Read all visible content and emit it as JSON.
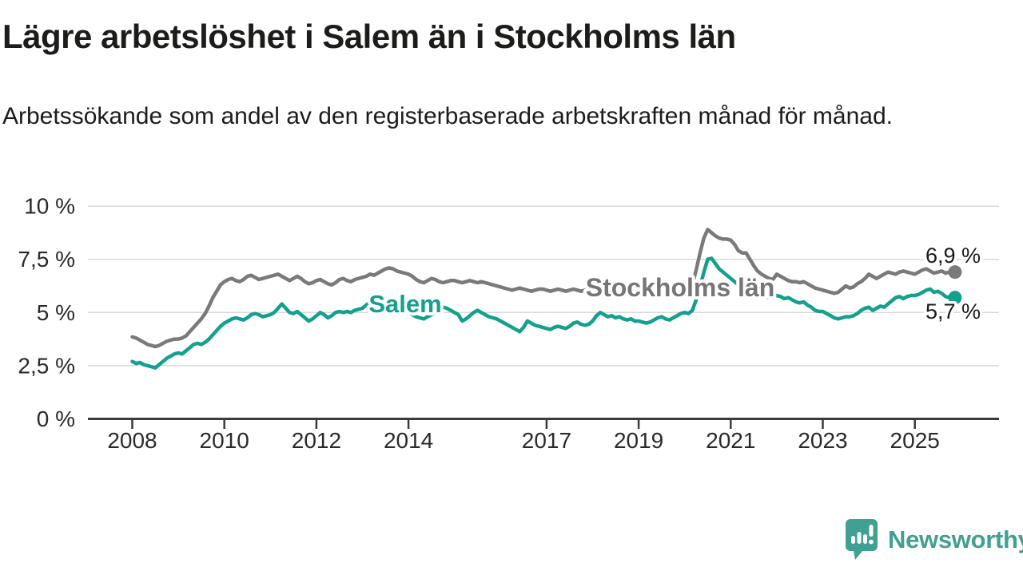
{
  "header": {
    "title": "Lägre arbetslöshet i Salem än i Stockholms län",
    "subtitle": "Arbetssökande som andel av den registerbaserade arbetskraften månad för månad."
  },
  "footer": {
    "brand": "Newsworthy"
  },
  "colors": {
    "teal": "#14a08f",
    "gray": "#7a7a7a",
    "label_gray": "#767676",
    "axis": "#3b3b3b",
    "grid": "#d9d9d9",
    "text": "#1c1c1a",
    "logo_teal": "#40a092"
  },
  "chart_data": {
    "type": "line",
    "unit": "%",
    "x_interval": "monthly",
    "x_start_year": 2008,
    "x_end": "2025-10",
    "grid": "horizontal-only",
    "legend": "inline-labels-on-lines",
    "ylim": [
      0,
      10.7
    ],
    "x_ticks": [
      2008,
      2010,
      2012,
      2014,
      2017,
      2019,
      2021,
      2023,
      2025
    ],
    "y_ticks": [
      {
        "value": 0,
        "label": "0 %"
      },
      {
        "value": 2.5,
        "label": "2,5 %"
      },
      {
        "value": 5,
        "label": "5 %"
      },
      {
        "value": 7.5,
        "label": "7,5 %"
      },
      {
        "value": 10,
        "label": "10 %"
      }
    ],
    "series": [
      {
        "name": "Stockholms län",
        "color": "#7a7a7a",
        "label_color": "#767676",
        "end_label": "6,9 %",
        "label_anchor": {
          "x": 851,
          "y": 131
        },
        "end_label_anchor": {
          "x": 1227,
          "y": 89
        },
        "values": [
          3.85,
          3.8,
          3.7,
          3.6,
          3.5,
          3.45,
          3.4,
          3.45,
          3.55,
          3.65,
          3.7,
          3.75,
          3.75,
          3.8,
          3.9,
          4.1,
          4.3,
          4.5,
          4.7,
          4.95,
          5.3,
          5.7,
          6.0,
          6.3,
          6.45,
          6.55,
          6.6,
          6.5,
          6.45,
          6.55,
          6.7,
          6.75,
          6.65,
          6.55,
          6.6,
          6.65,
          6.7,
          6.75,
          6.8,
          6.7,
          6.6,
          6.5,
          6.6,
          6.7,
          6.6,
          6.45,
          6.35,
          6.4,
          6.5,
          6.55,
          6.45,
          6.35,
          6.3,
          6.4,
          6.55,
          6.6,
          6.5,
          6.45,
          6.55,
          6.6,
          6.65,
          6.7,
          6.8,
          6.75,
          6.85,
          6.95,
          7.05,
          7.1,
          7.05,
          6.95,
          6.9,
          6.85,
          6.8,
          6.7,
          6.55,
          6.45,
          6.4,
          6.5,
          6.6,
          6.55,
          6.45,
          6.4,
          6.45,
          6.5,
          6.5,
          6.45,
          6.4,
          6.45,
          6.5,
          6.45,
          6.4,
          6.45,
          6.4,
          6.35,
          6.3,
          6.25,
          6.2,
          6.15,
          6.1,
          6.05,
          6.1,
          6.15,
          6.1,
          6.05,
          6.0,
          6.05,
          6.1,
          6.1,
          6.05,
          6.0,
          6.05,
          6.1,
          6.05,
          6.0,
          6.05,
          6.1,
          6.05,
          6.0,
          6.05,
          6.1,
          6.1,
          6.05,
          6.0,
          5.95,
          6.0,
          6.05,
          6.0,
          5.95,
          6.0,
          6.1,
          6.05,
          6.0,
          6.0,
          5.95,
          6.0,
          6.05,
          6.1,
          6.05,
          6.1,
          6.15,
          6.1,
          6.15,
          6.2,
          6.2,
          6.2,
          6.15,
          6.3,
          7.0,
          7.8,
          8.5,
          8.9,
          8.75,
          8.6,
          8.5,
          8.45,
          8.45,
          8.4,
          8.2,
          7.9,
          7.8,
          7.8,
          7.5,
          7.2,
          6.95,
          6.8,
          6.7,
          6.6,
          6.55,
          6.8,
          6.7,
          6.6,
          6.5,
          6.45,
          6.45,
          6.4,
          6.45,
          6.35,
          6.25,
          6.15,
          6.1,
          6.05,
          6.0,
          5.95,
          5.9,
          5.95,
          6.1,
          6.25,
          6.15,
          6.2,
          6.35,
          6.45,
          6.6,
          6.8,
          6.7,
          6.6,
          6.7,
          6.8,
          6.9,
          6.85,
          6.8,
          6.9,
          6.95,
          6.9,
          6.85,
          6.8,
          6.9,
          7.0,
          7.05,
          6.95,
          6.85,
          6.9,
          6.95,
          6.85,
          6.9
        ]
      },
      {
        "name": "Salem",
        "color": "#14a08f",
        "label_color": "#14a08f",
        "end_label": "5,7 %",
        "label_anchor": {
          "x": 507,
          "y": 151
        },
        "end_label_anchor": {
          "x": 1227,
          "y": 159
        },
        "values": [
          2.7,
          2.6,
          2.65,
          2.55,
          2.5,
          2.45,
          2.4,
          2.55,
          2.7,
          2.85,
          2.95,
          3.05,
          3.1,
          3.05,
          3.2,
          3.35,
          3.5,
          3.55,
          3.5,
          3.6,
          3.75,
          3.95,
          4.15,
          4.35,
          4.5,
          4.6,
          4.7,
          4.75,
          4.7,
          4.65,
          4.75,
          4.9,
          4.95,
          4.9,
          4.8,
          4.85,
          4.9,
          5.0,
          5.2,
          5.4,
          5.2,
          5.0,
          4.95,
          5.05,
          4.9,
          4.75,
          4.6,
          4.7,
          4.85,
          5.0,
          4.9,
          4.75,
          4.85,
          5.0,
          5.05,
          5.0,
          5.05,
          5.0,
          5.1,
          5.15,
          5.2,
          5.35,
          5.5,
          5.4,
          5.3,
          5.35,
          5.3,
          5.2,
          5.15,
          5.1,
          5.15,
          5.1,
          5.0,
          4.9,
          4.8,
          4.75,
          4.7,
          4.8,
          4.9,
          5.0,
          5.15,
          5.25,
          5.2,
          5.1,
          5.0,
          4.9,
          4.6,
          4.7,
          4.85,
          5.0,
          5.1,
          5.0,
          4.9,
          4.8,
          4.75,
          4.7,
          4.6,
          4.5,
          4.4,
          4.3,
          4.2,
          4.1,
          4.3,
          4.6,
          4.5,
          4.4,
          4.35,
          4.3,
          4.25,
          4.2,
          4.3,
          4.35,
          4.3,
          4.25,
          4.35,
          4.5,
          4.55,
          4.45,
          4.4,
          4.45,
          4.6,
          4.85,
          5.0,
          4.9,
          4.8,
          4.85,
          4.75,
          4.8,
          4.7,
          4.65,
          4.7,
          4.6,
          4.6,
          4.55,
          4.5,
          4.55,
          4.65,
          4.75,
          4.8,
          4.7,
          4.65,
          4.75,
          4.85,
          4.95,
          5.0,
          4.95,
          5.1,
          5.6,
          6.2,
          6.9,
          7.5,
          7.55,
          7.3,
          7.05,
          6.9,
          6.75,
          6.6,
          6.45,
          6.3,
          6.2,
          6.1,
          6.0,
          5.9,
          5.8,
          5.7,
          5.75,
          5.7,
          5.75,
          5.8,
          5.75,
          5.65,
          5.7,
          5.6,
          5.5,
          5.45,
          5.5,
          5.35,
          5.25,
          5.1,
          5.05,
          5.05,
          4.95,
          4.85,
          4.75,
          4.7,
          4.75,
          4.8,
          4.8,
          4.85,
          4.95,
          5.1,
          5.2,
          5.25,
          5.1,
          5.2,
          5.3,
          5.25,
          5.4,
          5.55,
          5.7,
          5.75,
          5.65,
          5.75,
          5.8,
          5.8,
          5.85,
          5.95,
          6.05,
          6.1,
          5.95,
          6.0,
          5.9,
          5.75,
          5.7
        ]
      }
    ]
  }
}
